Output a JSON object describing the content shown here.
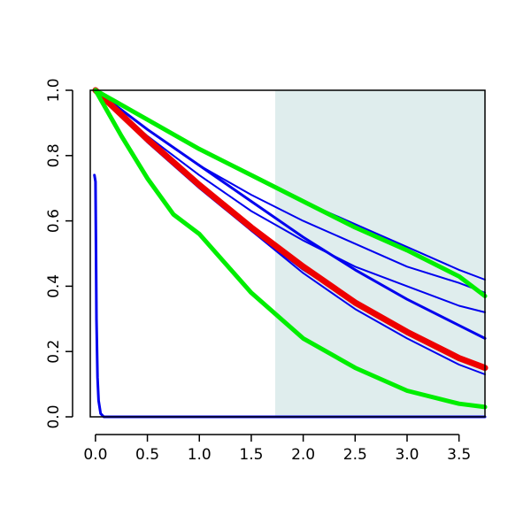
{
  "chart_data": {
    "type": "line",
    "title": "",
    "xlabel": "",
    "ylabel": "",
    "xlim": [
      -0.05,
      3.75
    ],
    "ylim": [
      0,
      1
    ],
    "grid": false,
    "x_ticks": [
      0.0,
      0.5,
      1.0,
      1.5,
      2.0,
      2.5,
      3.0,
      3.5
    ],
    "x_tick_labels": [
      "0.0",
      "0.5",
      "1.0",
      "1.5",
      "2.0",
      "2.5",
      "3.0",
      "3.5"
    ],
    "y_ticks": [
      0.0,
      0.2,
      0.4,
      0.6,
      0.8,
      1.0
    ],
    "y_tick_labels": [
      "0.0",
      "0.2",
      "0.4",
      "0.6",
      "0.8",
      "1.0"
    ],
    "shaded_region": {
      "x_from": 1.73,
      "x_to": 3.75,
      "color": "#dfeded"
    },
    "colors": {
      "blue": "#0000ee",
      "green": "#00ee00",
      "red": "#ee0000"
    },
    "series": [
      {
        "color": "#0000ee",
        "width": 2,
        "x": [
          0,
          0.5,
          1.0,
          1.5,
          2.0,
          2.5,
          3.0,
          3.5,
          3.75
        ],
        "y": [
          1.0,
          0.86,
          0.74,
          0.63,
          0.54,
          0.46,
          0.4,
          0.34,
          0.32
        ]
      },
      {
        "color": "#0000ee",
        "width": 2,
        "x": [
          0,
          0.5,
          1.0,
          1.5,
          2.0,
          2.5,
          3.0,
          3.5,
          3.75
        ],
        "y": [
          1.0,
          0.88,
          0.77,
          0.68,
          0.6,
          0.53,
          0.46,
          0.41,
          0.38
        ]
      },
      {
        "color": "#0000ee",
        "width": 2,
        "x": [
          0,
          0.5,
          1.0,
          1.5,
          2.0,
          2.5,
          3.0,
          3.5,
          3.75
        ],
        "y": [
          1.0,
          0.91,
          0.82,
          0.74,
          0.66,
          0.59,
          0.52,
          0.45,
          0.42
        ]
      },
      {
        "color": "#0000ee",
        "width": 3,
        "x": [
          0,
          0.5,
          1.0,
          1.5,
          2.0,
          2.5,
          3.0,
          3.5,
          3.75
        ],
        "y": [
          1.0,
          0.88,
          0.77,
          0.66,
          0.55,
          0.45,
          0.36,
          0.28,
          0.24
        ]
      },
      {
        "color": "#0000ee",
        "width": 2,
        "x": [
          0,
          0.5,
          1.0,
          1.5,
          2.0,
          2.5,
          3.0,
          3.5,
          3.75
        ],
        "y": [
          1.0,
          0.84,
          0.7,
          0.57,
          0.45,
          0.35,
          0.26,
          0.18,
          0.15
        ]
      },
      {
        "color": "#0000ee",
        "width": 2,
        "x": [
          0,
          0.5,
          1.0,
          1.5,
          2.0,
          2.5,
          3.0,
          3.5,
          3.75
        ],
        "y": [
          1.0,
          0.85,
          0.71,
          0.57,
          0.44,
          0.33,
          0.24,
          0.16,
          0.13
        ]
      },
      {
        "color": "#ee0000",
        "width": 7,
        "x": [
          0,
          0.5,
          1.0,
          1.5,
          2.0,
          2.5,
          3.0,
          3.5,
          3.75
        ],
        "y": [
          1.0,
          0.85,
          0.71,
          0.58,
          0.46,
          0.35,
          0.26,
          0.18,
          0.15
        ]
      },
      {
        "color": "#00ee00",
        "width": 5,
        "x": [
          0,
          0.5,
          1.0,
          1.5,
          2.0,
          2.5,
          3.0,
          3.5,
          3.75
        ],
        "y": [
          1.0,
          0.91,
          0.82,
          0.74,
          0.66,
          0.58,
          0.51,
          0.43,
          0.37
        ]
      },
      {
        "color": "#00ee00",
        "width": 5,
        "x": [
          0,
          0.25,
          0.5,
          0.75,
          1.0,
          1.5,
          2.0,
          2.5,
          3.0,
          3.5,
          3.75
        ],
        "y": [
          1.0,
          0.86,
          0.73,
          0.62,
          0.56,
          0.38,
          0.24,
          0.15,
          0.08,
          0.04,
          0.03
        ]
      },
      {
        "color": "#0000ee",
        "width": 3,
        "x": [
          -0.01,
          0.0,
          0.005,
          0.01,
          0.02,
          0.03,
          0.05,
          0.08,
          0.12,
          3.75
        ],
        "y": [
          0.74,
          0.72,
          0.5,
          0.3,
          0.12,
          0.05,
          0.01,
          0.0,
          0.0,
          0.0
        ]
      }
    ]
  }
}
